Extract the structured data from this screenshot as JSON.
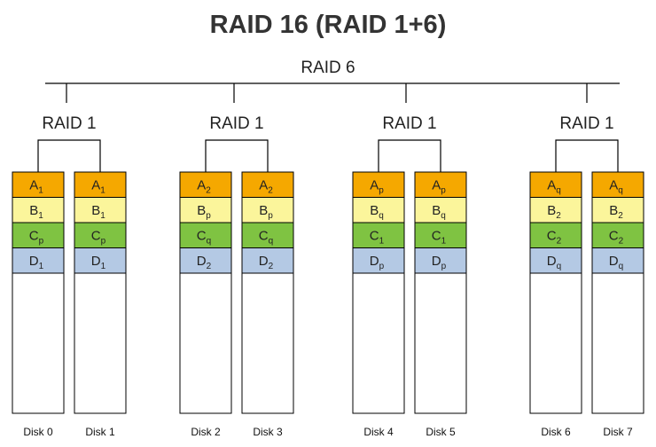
{
  "title": "RAID 16 (RAID 1+6)",
  "top_label": "RAID 6",
  "mirror_label": "RAID 1",
  "colors": {
    "row_a": "#f5a800",
    "row_b": "#fbf59b",
    "row_c": "#7fc342",
    "row_d": "#b4c9e4",
    "empty": "#ffffff",
    "border": "#000000"
  },
  "pairs": [
    {
      "label": "RAID 1",
      "disks": [
        {
          "name": "Disk 0",
          "blocks": [
            {
              "letter": "A",
              "sub": "1"
            },
            {
              "letter": "B",
              "sub": "1"
            },
            {
              "letter": "C",
              "sub": "p"
            },
            {
              "letter": "D",
              "sub": "1"
            }
          ]
        },
        {
          "name": "Disk 1",
          "blocks": [
            {
              "letter": "A",
              "sub": "1"
            },
            {
              "letter": "B",
              "sub": "1"
            },
            {
              "letter": "C",
              "sub": "p"
            },
            {
              "letter": "D",
              "sub": "1"
            }
          ]
        }
      ]
    },
    {
      "label": "RAID 1",
      "disks": [
        {
          "name": "Disk 2",
          "blocks": [
            {
              "letter": "A",
              "sub": "2"
            },
            {
              "letter": "B",
              "sub": "p"
            },
            {
              "letter": "C",
              "sub": "q"
            },
            {
              "letter": "D",
              "sub": "2"
            }
          ]
        },
        {
          "name": "Disk 3",
          "blocks": [
            {
              "letter": "A",
              "sub": "2"
            },
            {
              "letter": "B",
              "sub": "p"
            },
            {
              "letter": "C",
              "sub": "q"
            },
            {
              "letter": "D",
              "sub": "2"
            }
          ]
        }
      ]
    },
    {
      "label": "RAID 1",
      "disks": [
        {
          "name": "Disk 4",
          "blocks": [
            {
              "letter": "A",
              "sub": "p"
            },
            {
              "letter": "B",
              "sub": "q"
            },
            {
              "letter": "C",
              "sub": "1"
            },
            {
              "letter": "D",
              "sub": "p"
            }
          ]
        },
        {
          "name": "Disk 5",
          "blocks": [
            {
              "letter": "A",
              "sub": "p"
            },
            {
              "letter": "B",
              "sub": "q"
            },
            {
              "letter": "C",
              "sub": "1"
            },
            {
              "letter": "D",
              "sub": "p"
            }
          ]
        }
      ]
    },
    {
      "label": "RAID 1",
      "disks": [
        {
          "name": "Disk 6",
          "blocks": [
            {
              "letter": "A",
              "sub": "q"
            },
            {
              "letter": "B",
              "sub": "2"
            },
            {
              "letter": "C",
              "sub": "2"
            },
            {
              "letter": "D",
              "sub": "q"
            }
          ]
        },
        {
          "name": "Disk 7",
          "blocks": [
            {
              "letter": "A",
              "sub": "q"
            },
            {
              "letter": "B",
              "sub": "2"
            },
            {
              "letter": "C",
              "sub": "2"
            },
            {
              "letter": "D",
              "sub": "q"
            }
          ]
        }
      ]
    }
  ]
}
